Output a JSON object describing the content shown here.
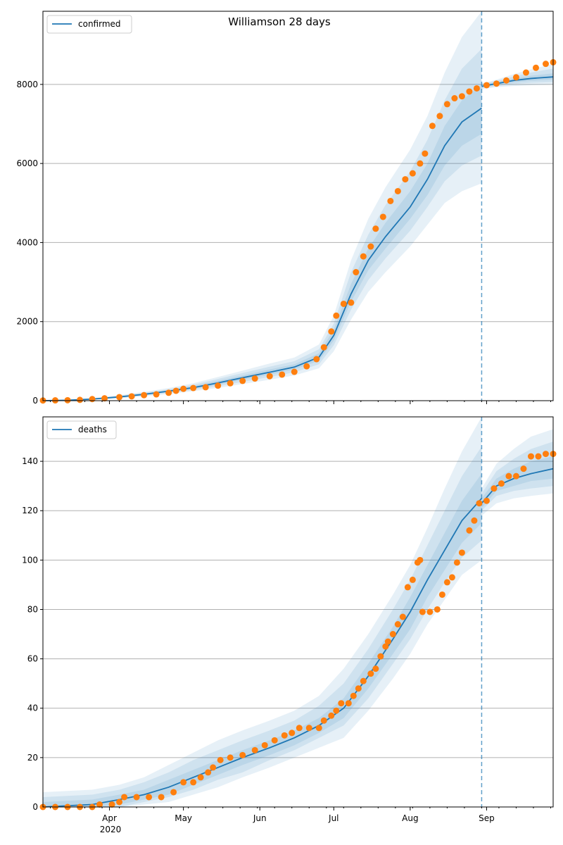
{
  "figure": {
    "title": "Williamson 28 days",
    "year_label": "2020",
    "colors": {
      "model_line": "#1f77b4",
      "observed": "#ff7f0e",
      "band": "#1f77b4",
      "grid": "#b0b0b0",
      "vline": "#1f77b4"
    }
  },
  "chart_data": [
    {
      "type": "line",
      "legend": "confirmed",
      "legend_position": "top-left",
      "grid": "y",
      "ylim": [
        0,
        9850
      ],
      "yticks": [
        0,
        2000,
        4000,
        6000,
        8000
      ],
      "xlim": [
        "2020-03-05",
        "2020-09-28"
      ],
      "xticks": [
        {
          "date": "2020-04-01",
          "label": "Apr"
        },
        {
          "date": "2020-05-01",
          "label": "May"
        },
        {
          "date": "2020-06-01",
          "label": "Jun"
        },
        {
          "date": "2020-07-01",
          "label": "Jul"
        },
        {
          "date": "2020-08-01",
          "label": "Aug"
        },
        {
          "date": "2020-09-01",
          "label": "Sep"
        }
      ],
      "vline_date": "2020-08-30",
      "model_fit": [
        [
          "2020-03-05",
          0,
          0,
          0,
          0,
          0,
          0,
          0
        ],
        [
          "2020-03-15",
          10,
          0,
          2,
          5,
          15,
          20,
          30
        ],
        [
          "2020-03-25",
          40,
          20,
          28,
          34,
          46,
          55,
          65
        ],
        [
          "2020-04-05",
          95,
          60,
          72,
          84,
          110,
          125,
          140
        ],
        [
          "2020-04-15",
          160,
          110,
          128,
          145,
          180,
          200,
          220
        ],
        [
          "2020-04-25",
          240,
          170,
          195,
          215,
          265,
          290,
          320
        ],
        [
          "2020-05-05",
          330,
          240,
          270,
          300,
          365,
          400,
          440
        ],
        [
          "2020-05-15",
          450,
          320,
          365,
          405,
          500,
          550,
          600
        ],
        [
          "2020-05-25",
          580,
          420,
          475,
          525,
          640,
          700,
          760
        ],
        [
          "2020-06-05",
          720,
          530,
          600,
          660,
          790,
          860,
          940
        ],
        [
          "2020-06-15",
          850,
          640,
          720,
          790,
          920,
          1000,
          1090
        ],
        [
          "2020-06-25",
          1100,
          820,
          920,
          1010,
          1200,
          1300,
          1420
        ],
        [
          "2020-07-01",
          1650,
          1250,
          1400,
          1520,
          1800,
          1950,
          2150
        ],
        [
          "2020-07-08",
          2700,
          2050,
          2300,
          2500,
          2950,
          3250,
          3550
        ],
        [
          "2020-07-15",
          3550,
          2750,
          3050,
          3300,
          3850,
          4200,
          4600
        ],
        [
          "2020-07-22",
          4150,
          3250,
          3600,
          3850,
          4500,
          4950,
          5400
        ],
        [
          "2020-08-01",
          4900,
          3900,
          4300,
          4600,
          5300,
          5800,
          6350
        ],
        [
          "2020-08-08",
          5600,
          4450,
          4900,
          5200,
          6000,
          6600,
          7200
        ],
        [
          "2020-08-15",
          6450,
          5000,
          5550,
          5950,
          6950,
          7600,
          8300
        ],
        [
          "2020-08-22",
          7050,
          5300,
          5950,
          6450,
          7600,
          8400,
          9200
        ],
        [
          "2020-08-30",
          7400,
          5500,
          6200,
          6750,
          8000,
          8900,
          9850
        ]
      ],
      "forecast": [
        [
          "2020-08-30",
          7950,
          7880,
          7900,
          7920,
          7980,
          8000,
          8020
        ],
        [
          "2020-09-05",
          8020,
          7930,
          7960,
          7990,
          8060,
          8090,
          8120
        ],
        [
          "2020-09-12",
          8100,
          7960,
          8010,
          8050,
          8150,
          8200,
          8260
        ],
        [
          "2020-09-19",
          8150,
          7980,
          8040,
          8090,
          8220,
          8300,
          8380
        ],
        [
          "2020-09-28",
          8190,
          8000,
          8060,
          8120,
          8280,
          8400,
          8520
        ]
      ],
      "observed": [
        [
          "2020-03-05",
          5
        ],
        [
          "2020-03-10",
          8
        ],
        [
          "2020-03-15",
          12
        ],
        [
          "2020-03-20",
          20
        ],
        [
          "2020-03-25",
          40
        ],
        [
          "2020-03-30",
          60
        ],
        [
          "2020-04-05",
          90
        ],
        [
          "2020-04-10",
          110
        ],
        [
          "2020-04-15",
          140
        ],
        [
          "2020-04-20",
          160
        ],
        [
          "2020-04-25",
          200
        ],
        [
          "2020-04-28",
          250
        ],
        [
          "2020-05-01",
          300
        ],
        [
          "2020-05-05",
          320
        ],
        [
          "2020-05-10",
          340
        ],
        [
          "2020-05-15",
          380
        ],
        [
          "2020-05-20",
          440
        ],
        [
          "2020-05-25",
          500
        ],
        [
          "2020-05-30",
          560
        ],
        [
          "2020-06-05",
          620
        ],
        [
          "2020-06-10",
          660
        ],
        [
          "2020-06-15",
          730
        ],
        [
          "2020-06-20",
          870
        ],
        [
          "2020-06-24",
          1050
        ],
        [
          "2020-06-27",
          1350
        ],
        [
          "2020-06-30",
          1750
        ],
        [
          "2020-07-02",
          2150
        ],
        [
          "2020-07-05",
          2450
        ],
        [
          "2020-07-08",
          2480
        ],
        [
          "2020-07-10",
          3250
        ],
        [
          "2020-07-13",
          3650
        ],
        [
          "2020-07-16",
          3900
        ],
        [
          "2020-07-18",
          4350
        ],
        [
          "2020-07-21",
          4650
        ],
        [
          "2020-07-24",
          5050
        ],
        [
          "2020-07-27",
          5300
        ],
        [
          "2020-07-30",
          5600
        ],
        [
          "2020-08-02",
          5750
        ],
        [
          "2020-08-05",
          6000
        ],
        [
          "2020-08-07",
          6250
        ],
        [
          "2020-08-10",
          6950
        ],
        [
          "2020-08-13",
          7200
        ],
        [
          "2020-08-16",
          7500
        ],
        [
          "2020-08-19",
          7650
        ],
        [
          "2020-08-22",
          7700
        ],
        [
          "2020-08-25",
          7820
        ],
        [
          "2020-08-28",
          7900
        ],
        [
          "2020-09-01",
          7980
        ],
        [
          "2020-09-05",
          8020
        ],
        [
          "2020-09-09",
          8100
        ],
        [
          "2020-09-13",
          8180
        ],
        [
          "2020-09-17",
          8300
        ],
        [
          "2020-09-21",
          8420
        ],
        [
          "2020-09-25",
          8520
        ],
        [
          "2020-09-28",
          8560
        ]
      ]
    },
    {
      "type": "line",
      "legend": "deaths",
      "legend_position": "top-left",
      "grid": "y",
      "ylim": [
        0,
        158
      ],
      "yticks": [
        0,
        20,
        40,
        60,
        80,
        100,
        120,
        140
      ],
      "xlim": [
        "2020-03-05",
        "2020-09-28"
      ],
      "xticks": [
        {
          "date": "2020-04-01",
          "label": "Apr"
        },
        {
          "date": "2020-05-01",
          "label": "May"
        },
        {
          "date": "2020-06-01",
          "label": "Jun"
        },
        {
          "date": "2020-07-01",
          "label": "Jul"
        },
        {
          "date": "2020-08-01",
          "label": "Aug"
        },
        {
          "date": "2020-09-01",
          "label": "Sep"
        }
      ],
      "vline_date": "2020-08-30",
      "model_fit": [
        [
          "2020-03-05",
          0,
          0,
          0,
          0,
          2,
          4,
          6
        ],
        [
          "2020-03-25",
          1,
          0,
          0,
          0,
          3,
          5,
          7
        ],
        [
          "2020-04-05",
          3,
          0,
          0,
          1,
          5,
          7,
          9
        ],
        [
          "2020-04-15",
          5,
          1,
          2,
          3,
          7,
          10,
          12
        ],
        [
          "2020-04-25",
          8,
          2,
          4,
          5,
          11,
          14,
          17
        ],
        [
          "2020-05-05",
          12,
          5,
          7,
          9,
          15,
          19,
          22
        ],
        [
          "2020-05-15",
          16,
          8,
          11,
          13,
          19,
          23,
          27
        ],
        [
          "2020-05-25",
          20,
          12,
          14,
          17,
          23,
          27,
          31
        ],
        [
          "2020-06-05",
          24,
          16,
          19,
          21,
          27,
          31,
          35
        ],
        [
          "2020-06-15",
          28,
          20,
          23,
          25,
          31,
          35,
          39
        ],
        [
          "2020-06-25",
          33,
          24,
          28,
          30,
          36,
          41,
          45
        ],
        [
          "2020-07-05",
          40,
          28,
          33,
          36,
          44,
          50,
          56
        ],
        [
          "2020-07-15",
          53,
          39,
          44,
          48,
          58,
          64,
          70
        ],
        [
          "2020-07-25",
          68,
          52,
          58,
          62,
          73,
          80,
          86
        ],
        [
          "2020-08-01",
          79,
          62,
          68,
          72,
          85,
          92,
          98
        ],
        [
          "2020-08-08",
          92,
          74,
          80,
          85,
          98,
          106,
          113
        ],
        [
          "2020-08-15",
          104,
          84,
          91,
          96,
          111,
          120,
          129
        ],
        [
          "2020-08-22",
          116,
          94,
          101,
          107,
          124,
          134,
          144
        ],
        [
          "2020-08-30",
          125,
          100,
          108,
          115,
          135,
          146,
          158
        ]
      ],
      "forecast": [
        [
          "2020-08-30",
          123,
          118,
          120,
          121,
          125,
          127,
          129
        ],
        [
          "2020-09-05",
          130,
          123,
          126,
          128,
          133,
          136,
          139
        ],
        [
          "2020-09-12",
          133,
          125,
          128,
          130,
          137,
          141,
          145
        ],
        [
          "2020-09-19",
          135,
          126,
          129,
          132,
          140,
          145,
          150
        ],
        [
          "2020-09-28",
          137,
          127,
          130,
          133,
          142,
          148,
          153
        ]
      ],
      "observed": [
        [
          "2020-03-05",
          0
        ],
        [
          "2020-03-10",
          0
        ],
        [
          "2020-03-15",
          0
        ],
        [
          "2020-03-20",
          0
        ],
        [
          "2020-03-25",
          0
        ],
        [
          "2020-03-28",
          1
        ],
        [
          "2020-04-02",
          1
        ],
        [
          "2020-04-05",
          2
        ],
        [
          "2020-04-07",
          4
        ],
        [
          "2020-04-12",
          4
        ],
        [
          "2020-04-17",
          4
        ],
        [
          "2020-04-22",
          4
        ],
        [
          "2020-04-27",
          6
        ],
        [
          "2020-05-01",
          10
        ],
        [
          "2020-05-05",
          10
        ],
        [
          "2020-05-08",
          12
        ],
        [
          "2020-05-11",
          14
        ],
        [
          "2020-05-13",
          16
        ],
        [
          "2020-05-16",
          19
        ],
        [
          "2020-05-20",
          20
        ],
        [
          "2020-05-25",
          21
        ],
        [
          "2020-05-30",
          23
        ],
        [
          "2020-06-03",
          25
        ],
        [
          "2020-06-07",
          27
        ],
        [
          "2020-06-11",
          29
        ],
        [
          "2020-06-14",
          30
        ],
        [
          "2020-06-17",
          32
        ],
        [
          "2020-06-21",
          32
        ],
        [
          "2020-06-25",
          32
        ],
        [
          "2020-06-27",
          35
        ],
        [
          "2020-06-30",
          37
        ],
        [
          "2020-07-02",
          39
        ],
        [
          "2020-07-04",
          42
        ],
        [
          "2020-07-07",
          42
        ],
        [
          "2020-07-09",
          45
        ],
        [
          "2020-07-11",
          48
        ],
        [
          "2020-07-13",
          51
        ],
        [
          "2020-07-16",
          54
        ],
        [
          "2020-07-18",
          56
        ],
        [
          "2020-07-20",
          61
        ],
        [
          "2020-07-22",
          65
        ],
        [
          "2020-07-23",
          67
        ],
        [
          "2020-07-25",
          70
        ],
        [
          "2020-07-27",
          74
        ],
        [
          "2020-07-29",
          77
        ],
        [
          "2020-07-31",
          89
        ],
        [
          "2020-08-02",
          92
        ],
        [
          "2020-08-04",
          99
        ],
        [
          "2020-08-05",
          100
        ],
        [
          "2020-08-06",
          79
        ],
        [
          "2020-08-09",
          79
        ],
        [
          "2020-08-12",
          80
        ],
        [
          "2020-08-14",
          86
        ],
        [
          "2020-08-16",
          91
        ],
        [
          "2020-08-18",
          93
        ],
        [
          "2020-08-20",
          99
        ],
        [
          "2020-08-22",
          103
        ],
        [
          "2020-08-25",
          112
        ],
        [
          "2020-08-27",
          116
        ],
        [
          "2020-08-29",
          123
        ],
        [
          "2020-09-01",
          124
        ],
        [
          "2020-09-04",
          129
        ],
        [
          "2020-09-07",
          131
        ],
        [
          "2020-09-10",
          134
        ],
        [
          "2020-09-13",
          134
        ],
        [
          "2020-09-16",
          137
        ],
        [
          "2020-09-19",
          142
        ],
        [
          "2020-09-22",
          142
        ],
        [
          "2020-09-25",
          143
        ],
        [
          "2020-09-28",
          143
        ]
      ]
    }
  ]
}
